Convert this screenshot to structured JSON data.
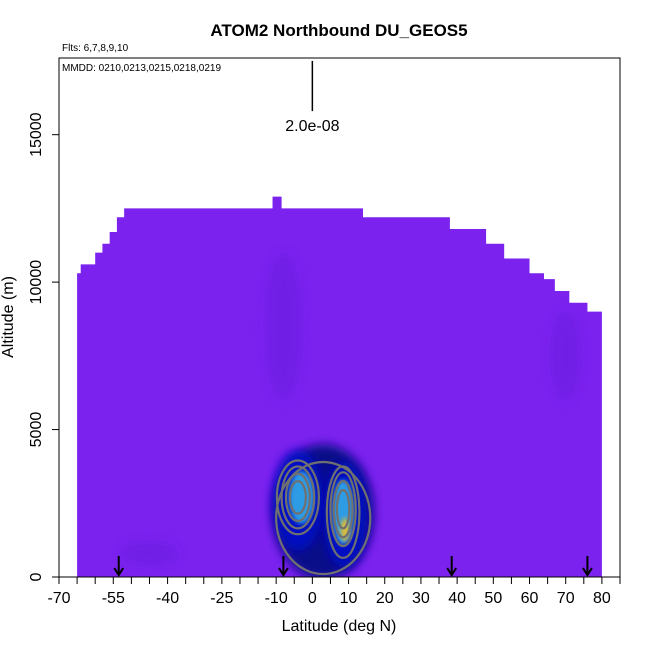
{
  "chart_data": {
    "type": "heatmap",
    "title": "ATOM2 Northbound DU_GEOS5",
    "flights_label": "Flts: 6,7,8,9,10",
    "dates_label": "MMDD: 0210,0213,0215,0218,0219",
    "xlabel": "Latitude (deg N)",
    "ylabel": "Altitude (m)",
    "xlim": [
      -70,
      85
    ],
    "ylim": [
      0,
      17600
    ],
    "x_tick_labels": [
      "-70",
      "-55",
      "-40",
      "-25",
      "-10",
      "0",
      "10",
      "20",
      "30",
      "40",
      "50",
      "60",
      "70",
      "80"
    ],
    "x_tick_values": [
      -70,
      -55,
      -40,
      -25,
      -10,
      0,
      10,
      20,
      30,
      40,
      50,
      60,
      70,
      80
    ],
    "y_tick_labels": [
      "0",
      "5000",
      "10000",
      "15000"
    ],
    "y_tick_values": [
      0,
      5000,
      10000,
      15000
    ],
    "scale_bar": {
      "label": "2.0e-08",
      "lat": 0,
      "alt_bottom": 15800,
      "alt_top": 17500
    },
    "profile_arrows_lat": [
      -53.5,
      -8,
      38.5,
      76
    ],
    "colors": {
      "background_field": "#7b22ef",
      "low": "#6a1ee0",
      "mid": "#0010c8",
      "dark": "#001080",
      "high": "#30a8e8",
      "peak": "#f0c020",
      "contour": "#707070"
    },
    "ceiling": [
      [
        -65,
        10300
      ],
      [
        -64,
        10600
      ],
      [
        -60,
        11000
      ],
      [
        -58,
        11300
      ],
      [
        -56,
        11700
      ],
      [
        -54,
        12200
      ],
      [
        -52,
        12500
      ],
      [
        -12,
        12500
      ],
      [
        -11,
        12900
      ],
      [
        -9.5,
        12900
      ],
      [
        -8.5,
        12500
      ],
      [
        12,
        12500
      ],
      [
        14,
        12200
      ],
      [
        37,
        12200
      ],
      [
        38,
        11800
      ],
      [
        48,
        11300
      ],
      [
        53,
        10800
      ],
      [
        60,
        10300
      ],
      [
        64,
        10100
      ],
      [
        67,
        9700
      ],
      [
        71,
        9300
      ],
      [
        76,
        9000
      ],
      [
        80,
        9000
      ]
    ],
    "blobs": [
      {
        "lat": 3,
        "alt": 2200,
        "rlat": 14,
        "ralt": 2300,
        "level": "dark"
      },
      {
        "lat": -4,
        "alt": 2600,
        "rlat": 7,
        "ralt": 1700,
        "level": "mid"
      },
      {
        "lat": 9,
        "alt": 2100,
        "rlat": 6,
        "ralt": 1800,
        "level": "mid"
      },
      {
        "lat": -3,
        "alt": 2700,
        "rlat": 3.5,
        "ralt": 900,
        "level": "high"
      },
      {
        "lat": 8.5,
        "alt": 2200,
        "rlat": 3,
        "ralt": 1100,
        "level": "high"
      },
      {
        "lat": 9,
        "alt": 1600,
        "rlat": 1.2,
        "ralt": 400,
        "level": "peak"
      },
      {
        "lat": -45,
        "alt": 800,
        "rlat": 8,
        "ralt": 400,
        "level": "low"
      },
      {
        "lat": -8,
        "alt": 8500,
        "rlat": 5,
        "ralt": 2500,
        "level": "low"
      },
      {
        "lat": 70,
        "alt": 7500,
        "rlat": 4,
        "ralt": 1500,
        "level": "low"
      }
    ],
    "contours": [
      {
        "lat": -4,
        "alt": 2700,
        "rlat": 2.2,
        "ralt": 550
      },
      {
        "lat": -4,
        "alt": 2700,
        "rlat": 3.3,
        "ralt": 800
      },
      {
        "lat": -4,
        "alt": 2700,
        "rlat": 4.5,
        "ralt": 1050
      },
      {
        "lat": -4,
        "alt": 2700,
        "rlat": 5.8,
        "ralt": 1250
      },
      {
        "lat": 8.5,
        "alt": 2300,
        "rlat": 1.7,
        "ralt": 650
      },
      {
        "lat": 8.5,
        "alt": 2300,
        "rlat": 2.6,
        "ralt": 950
      },
      {
        "lat": 8.5,
        "alt": 2300,
        "rlat": 3.5,
        "ralt": 1250
      },
      {
        "lat": 8.5,
        "alt": 2200,
        "rlat": 4.5,
        "ralt": 1550
      },
      {
        "lat": 3,
        "alt": 2000,
        "rlat": 13,
        "ralt": 1900
      }
    ]
  }
}
